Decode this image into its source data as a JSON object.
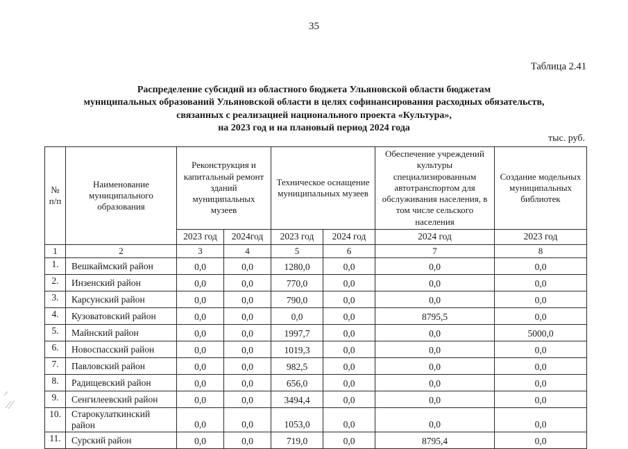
{
  "page": {
    "number": "35",
    "table_label": "Таблица 2.41",
    "title_lines": [
      "Распределение субсидий из областного бюджета Ульяновской области бюджетам",
      "муниципальных образований Ульяновской области в целях софинансирования расходных обязательств,",
      "связанных с реализацией национального проекта «Культура»,",
      "на 2023 год и на плановый период 2024 года"
    ],
    "units": "тыс. руб."
  },
  "table": {
    "headers": {
      "num": "№ п/п",
      "name": "Наименование муниципального образования",
      "group_museums_repair": "Реконструкция и капитальный ремонт зданий муниципальных музеев",
      "group_museums_equip": "Техническое оснащение муниципальных музеев",
      "group_transport": "Обеспечение учреждений культуры специализированным автотранспортом для обслуживания населения, в том числе сельского населения",
      "group_libraries": "Создание модельных муниципальных библиотек",
      "years": [
        "2023 год",
        "2024год",
        "2023 год",
        "2024 год",
        "2024 год",
        "2023 год"
      ],
      "col_numbers": [
        "1",
        "2",
        "3",
        "4",
        "5",
        "6",
        "7",
        "8"
      ]
    },
    "rows": [
      {
        "num": "1.",
        "name": "Вешкаймский район",
        "values": [
          "0,0",
          "0,0",
          "1280,0",
          "0,0",
          "0,0",
          "0,0"
        ]
      },
      {
        "num": "2.",
        "name": "Инзенский район",
        "values": [
          "0,0",
          "0,0",
          "770,0",
          "0,0",
          "0,0",
          "0,0"
        ]
      },
      {
        "num": "3.",
        "name": "Карсунский район",
        "values": [
          "0,0",
          "0,0",
          "790,0",
          "0,0",
          "0,0",
          "0,0"
        ]
      },
      {
        "num": "4.",
        "name": "Кузоватовский район",
        "values": [
          "0,0",
          "0,0",
          "0,0",
          "0,0",
          "8795,5",
          "0,0"
        ]
      },
      {
        "num": "5.",
        "name": "Майнский район",
        "values": [
          "0,0",
          "0,0",
          "1997,7",
          "0,0",
          "0,0",
          "5000,0"
        ]
      },
      {
        "num": "6.",
        "name": "Новоспасский район",
        "values": [
          "0,0",
          "0,0",
          "1019,3",
          "0,0",
          "0,0",
          "0,0"
        ]
      },
      {
        "num": "7.",
        "name": "Павловский район",
        "values": [
          "0,0",
          "0,0",
          "982,5",
          "0,0",
          "0,0",
          "0,0"
        ]
      },
      {
        "num": "8.",
        "name": "Радищевский район",
        "values": [
          "0,0",
          "0,0",
          "656,0",
          "0,0",
          "0,0",
          "0,0"
        ]
      },
      {
        "num": "9.",
        "name": "Сенгилеевский район",
        "values": [
          "0,0",
          "0,0",
          "3494,4",
          "0,0",
          "0,0",
          "0,0"
        ]
      },
      {
        "num": "10.",
        "name": "Старокулаткинский район",
        "values": [
          "0,0",
          "0,0",
          "1053,0",
          "0,0",
          "0,0",
          "0,0"
        ]
      },
      {
        "num": "11.",
        "name": "Сурский район",
        "values": [
          "0,0",
          "0,0",
          "719,0",
          "0,0",
          "8795,4",
          "0,0"
        ]
      }
    ]
  }
}
